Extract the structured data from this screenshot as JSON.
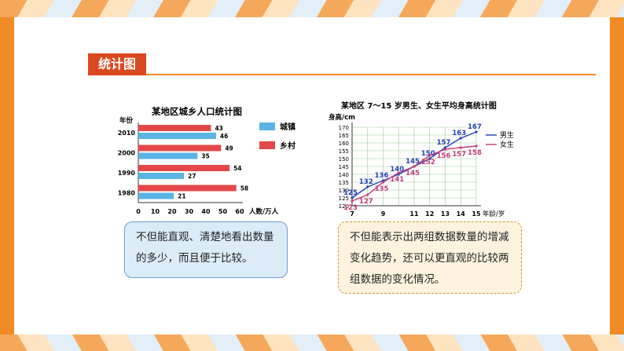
{
  "section_tag": "统计图",
  "callouts": {
    "bar": "不但能直观、清楚地看出数量的多少，而且便于比较。",
    "line": "不但能表示出两组数据数量的增减变化趋势，还可以更直观的比较两组数据的变化情况。"
  },
  "colors": {
    "town": "#5ab4e4",
    "village": "#e3474a",
    "boys": "#2541b8",
    "girls": "#c43c7a",
    "accent": "#d9481f"
  },
  "chart_data": [
    {
      "type": "bar",
      "title": "某地区城乡人口统计图",
      "ylabel": "年份",
      "xlabel": "人数/万人",
      "categories": [
        "2010",
        "2000",
        "1990",
        "1980"
      ],
      "series": [
        {
          "name": "城镇",
          "values": [
            46,
            35,
            27,
            21
          ]
        },
        {
          "name": "乡村",
          "values": [
            43,
            49,
            54,
            58
          ]
        }
      ],
      "xlim": [
        0,
        60
      ],
      "xticks": [
        "0",
        "10",
        "20",
        "30",
        "40",
        "50",
        "60"
      ]
    },
    {
      "type": "line",
      "title": "某地区 7～15 岁男生、女生平均身高统计图",
      "ylabel": "身高/cm",
      "xlabel": "年龄/岁",
      "x": [
        7,
        8,
        9,
        10,
        11,
        12,
        13,
        14,
        15
      ],
      "xticks": [
        "7",
        "9",
        "11",
        "12",
        "13",
        "14",
        "15"
      ],
      "yticks": [
        "120",
        "125",
        "130",
        "135",
        "140",
        "145",
        "150",
        "155",
        "160",
        "165",
        "170"
      ],
      "ylim": [
        120,
        170
      ],
      "series": [
        {
          "name": "男生",
          "values": [
            125,
            132,
            136,
            140,
            145,
            150,
            157,
            163,
            167
          ]
        },
        {
          "name": "女生",
          "values": [
            123,
            127,
            135,
            141,
            145,
            152,
            156,
            157,
            158
          ]
        }
      ]
    }
  ]
}
